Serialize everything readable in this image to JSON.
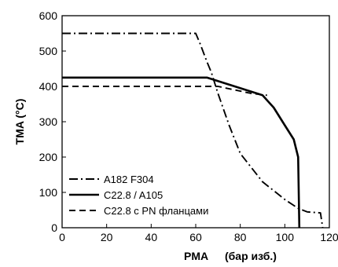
{
  "chart_data": {
    "type": "line",
    "xlabel": "PMA",
    "xunit": "(бар изб.)",
    "ylabel": "TMA (°C)",
    "xlim": [
      0,
      120
    ],
    "ylim": [
      0,
      600
    ],
    "xticks": [
      0,
      20,
      40,
      60,
      80,
      100,
      120
    ],
    "yticks": [
      0,
      100,
      200,
      300,
      400,
      500,
      600
    ],
    "grid": false,
    "legend_position": "bottom-left",
    "series": [
      {
        "name": "A182 F304",
        "style": "dash-dot",
        "points": [
          [
            0,
            550
          ],
          [
            60,
            550
          ],
          [
            62,
            520
          ],
          [
            65,
            470
          ],
          [
            67,
            440
          ],
          [
            70,
            380
          ],
          [
            75,
            290
          ],
          [
            80,
            210
          ],
          [
            90,
            130
          ],
          [
            100,
            80
          ],
          [
            106,
            55
          ],
          [
            110,
            45
          ],
          [
            116,
            42
          ],
          [
            117,
            0
          ]
        ]
      },
      {
        "name": "C22.8 / A105",
        "style": "solid",
        "points": [
          [
            0,
            425
          ],
          [
            65,
            425
          ],
          [
            80,
            395
          ],
          [
            90,
            375
          ],
          [
            95,
            340
          ],
          [
            100,
            290
          ],
          [
            104,
            250
          ],
          [
            106,
            200
          ],
          [
            106.5,
            0
          ]
        ]
      },
      {
        "name": "C22.8 с PN фланцами",
        "style": "dashed",
        "points": [
          [
            0,
            400
          ],
          [
            70,
            400
          ],
          [
            85,
            380
          ],
          [
            92,
            375
          ]
        ]
      }
    ]
  }
}
